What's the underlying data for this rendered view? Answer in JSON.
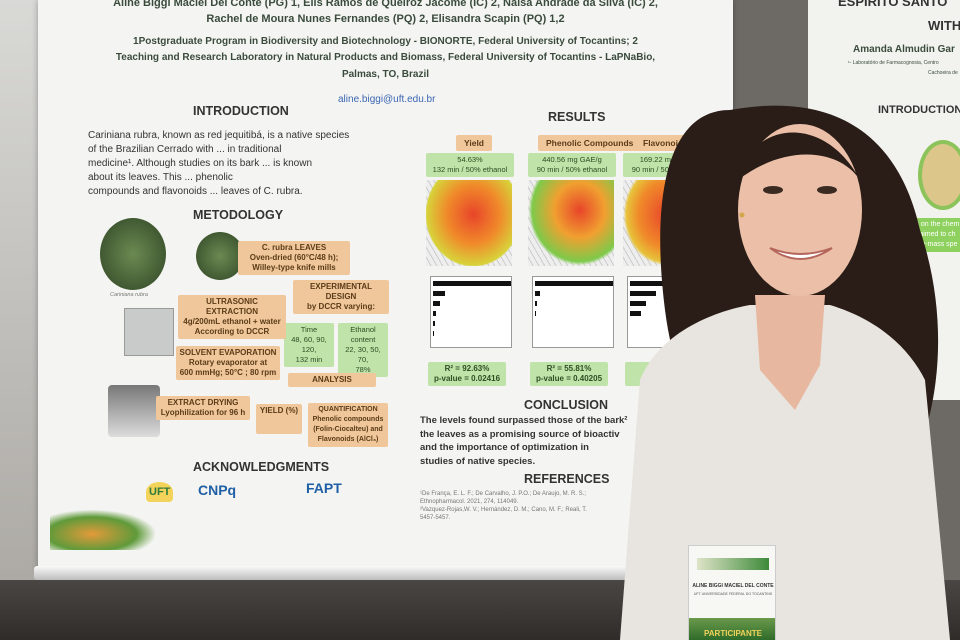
{
  "poster": {
    "authors_line1": "Aline Biggi Maciel Del Conte (PG) 1, Elis Ramos de Queiroz Jácome (IC) 2, Naísa Andrade da Silva (IC) 2,",
    "authors_line2": "Rachel de Moura Nunes Fernandes (PQ) 2, Elisandra Scapin (PQ) 1,2",
    "affiliation_line1": "1Postgraduate Program in Biodiversity and Biotechnology - BIONORTE, Federal University of Tocantins; 2",
    "affiliation_line2": "Teaching and Research Laboratory in Natural Products and Biomass, Federal University of Tocantins - LaPNaBio,",
    "affiliation_line3": "Palmas, TO, Brazil",
    "email": "aline.biggi@uft.edu.br",
    "introduction": {
      "heading": "INTRODUCTION",
      "lines": [
        "Cariniana rubra, known as red jequitibá, is a native species",
        "of the Brazilian Cerrado with ... in traditional",
        "medicine¹. Although studies on its bark ... is known",
        "about its leaves. This ... phenolic",
        "compounds and flavonoids ... leaves of C. rubra."
      ]
    },
    "methodology": {
      "heading": "METODOLOGY",
      "photo_caption": "Cariniana rubra",
      "leaves": "C. rubra LEAVES\nOven-dried (60°C/48 h);\nWilley-type knife mills",
      "design": "EXPERIMENTAL DESIGN\nby DCCR varying:",
      "time": "Time\n48, 60, 90, 120,\n132 min",
      "ethanol": "Ethanol\ncontent\n22, 30, 50, 70,\n78%",
      "ultrasonic": "ULTRASONIC EXTRACTION\n4g/200mL ethanol + water\nAccording to DCCR",
      "evaporation": "SOLVENT EVAPORATION\nRotary evaporator at\n600 mmHg; 50°C ; 80 rpm",
      "analysis": "ANALYSIS",
      "drying": "EXTRACT DRYING\nLyophilization for 96 h",
      "yield": "YIELD (%)",
      "quantification": "QUANTIFICATION\nPhenolic compounds\n(Folin-Ciocalteu) and\nFlavonoids (AlCl₃)"
    },
    "results": {
      "heading": "RESULTS",
      "panels": [
        {
          "label": "Yield",
          "value": "54.63%",
          "condition": "132 min / 50% ethanol",
          "r2": "R² = 92.63%",
          "p": "p-value = 0.02416"
        },
        {
          "label": "Phenolic Compounds",
          "value": "440.56 mg GAE/g",
          "condition": "90 min / 50% ethanol",
          "r2": "R² = 55.81%",
          "p": "p-value = 0.40205"
        },
        {
          "label": "Flavonoids",
          "value": "169.22 mg QE/g",
          "condition": "90 min / 50% ethanol",
          "r2": "R²",
          "p": "p-va"
        }
      ]
    },
    "conclusion": {
      "heading": "CONCLUSION",
      "lines": [
        "The levels found surpassed those of the bark²",
        "the leaves as a promising source of bioactiv",
        "and the importance of optimization in",
        "studies of native species."
      ]
    },
    "references": {
      "heading": "REFERENCES",
      "lines": [
        "¹De França, E. L. F.; De Carvalho, J. P.O.; De Araujo, M. R. S.;",
        "Ethnopharmacol. 2021, 274, 114049.",
        "²Vazquez-Rojas,W. V.; Hernández, D. M.; Cano, M. F.; Reali, T.",
        "5457-5457."
      ]
    },
    "acknowledgments": {
      "heading": "ACKNOWLEDGMENTS",
      "logos": [
        "UFT",
        "CNPq",
        "FAPT"
      ]
    }
  },
  "poster2": {
    "title_line1": "ESPIRITO SANTO",
    "title_line2": "WITH",
    "author": "Amanda Almudin Gar",
    "affil1": "¹- Laboratório de Farmacognosia, Centro",
    "affil2": "Cachoeira de",
    "section": "INTRODUCTION",
    "green_text": [
      "ies on the chem",
      "dy aimed to ch",
      "aphy-mass spe"
    ]
  },
  "badge": {
    "name": "ALINE BIGGI MACIEL DEL CONTE",
    "org": "UFT UNIVERSIDADE FEDERAL DO TOCANTINS",
    "role": "PARTICIPANTE"
  },
  "colors": {
    "poster_bg": "#f4f4f2",
    "orange_box": "#f0c79a",
    "green_box": "#bfe3a8",
    "shirt": "#e8e4df",
    "hair": "#2a1d17"
  }
}
